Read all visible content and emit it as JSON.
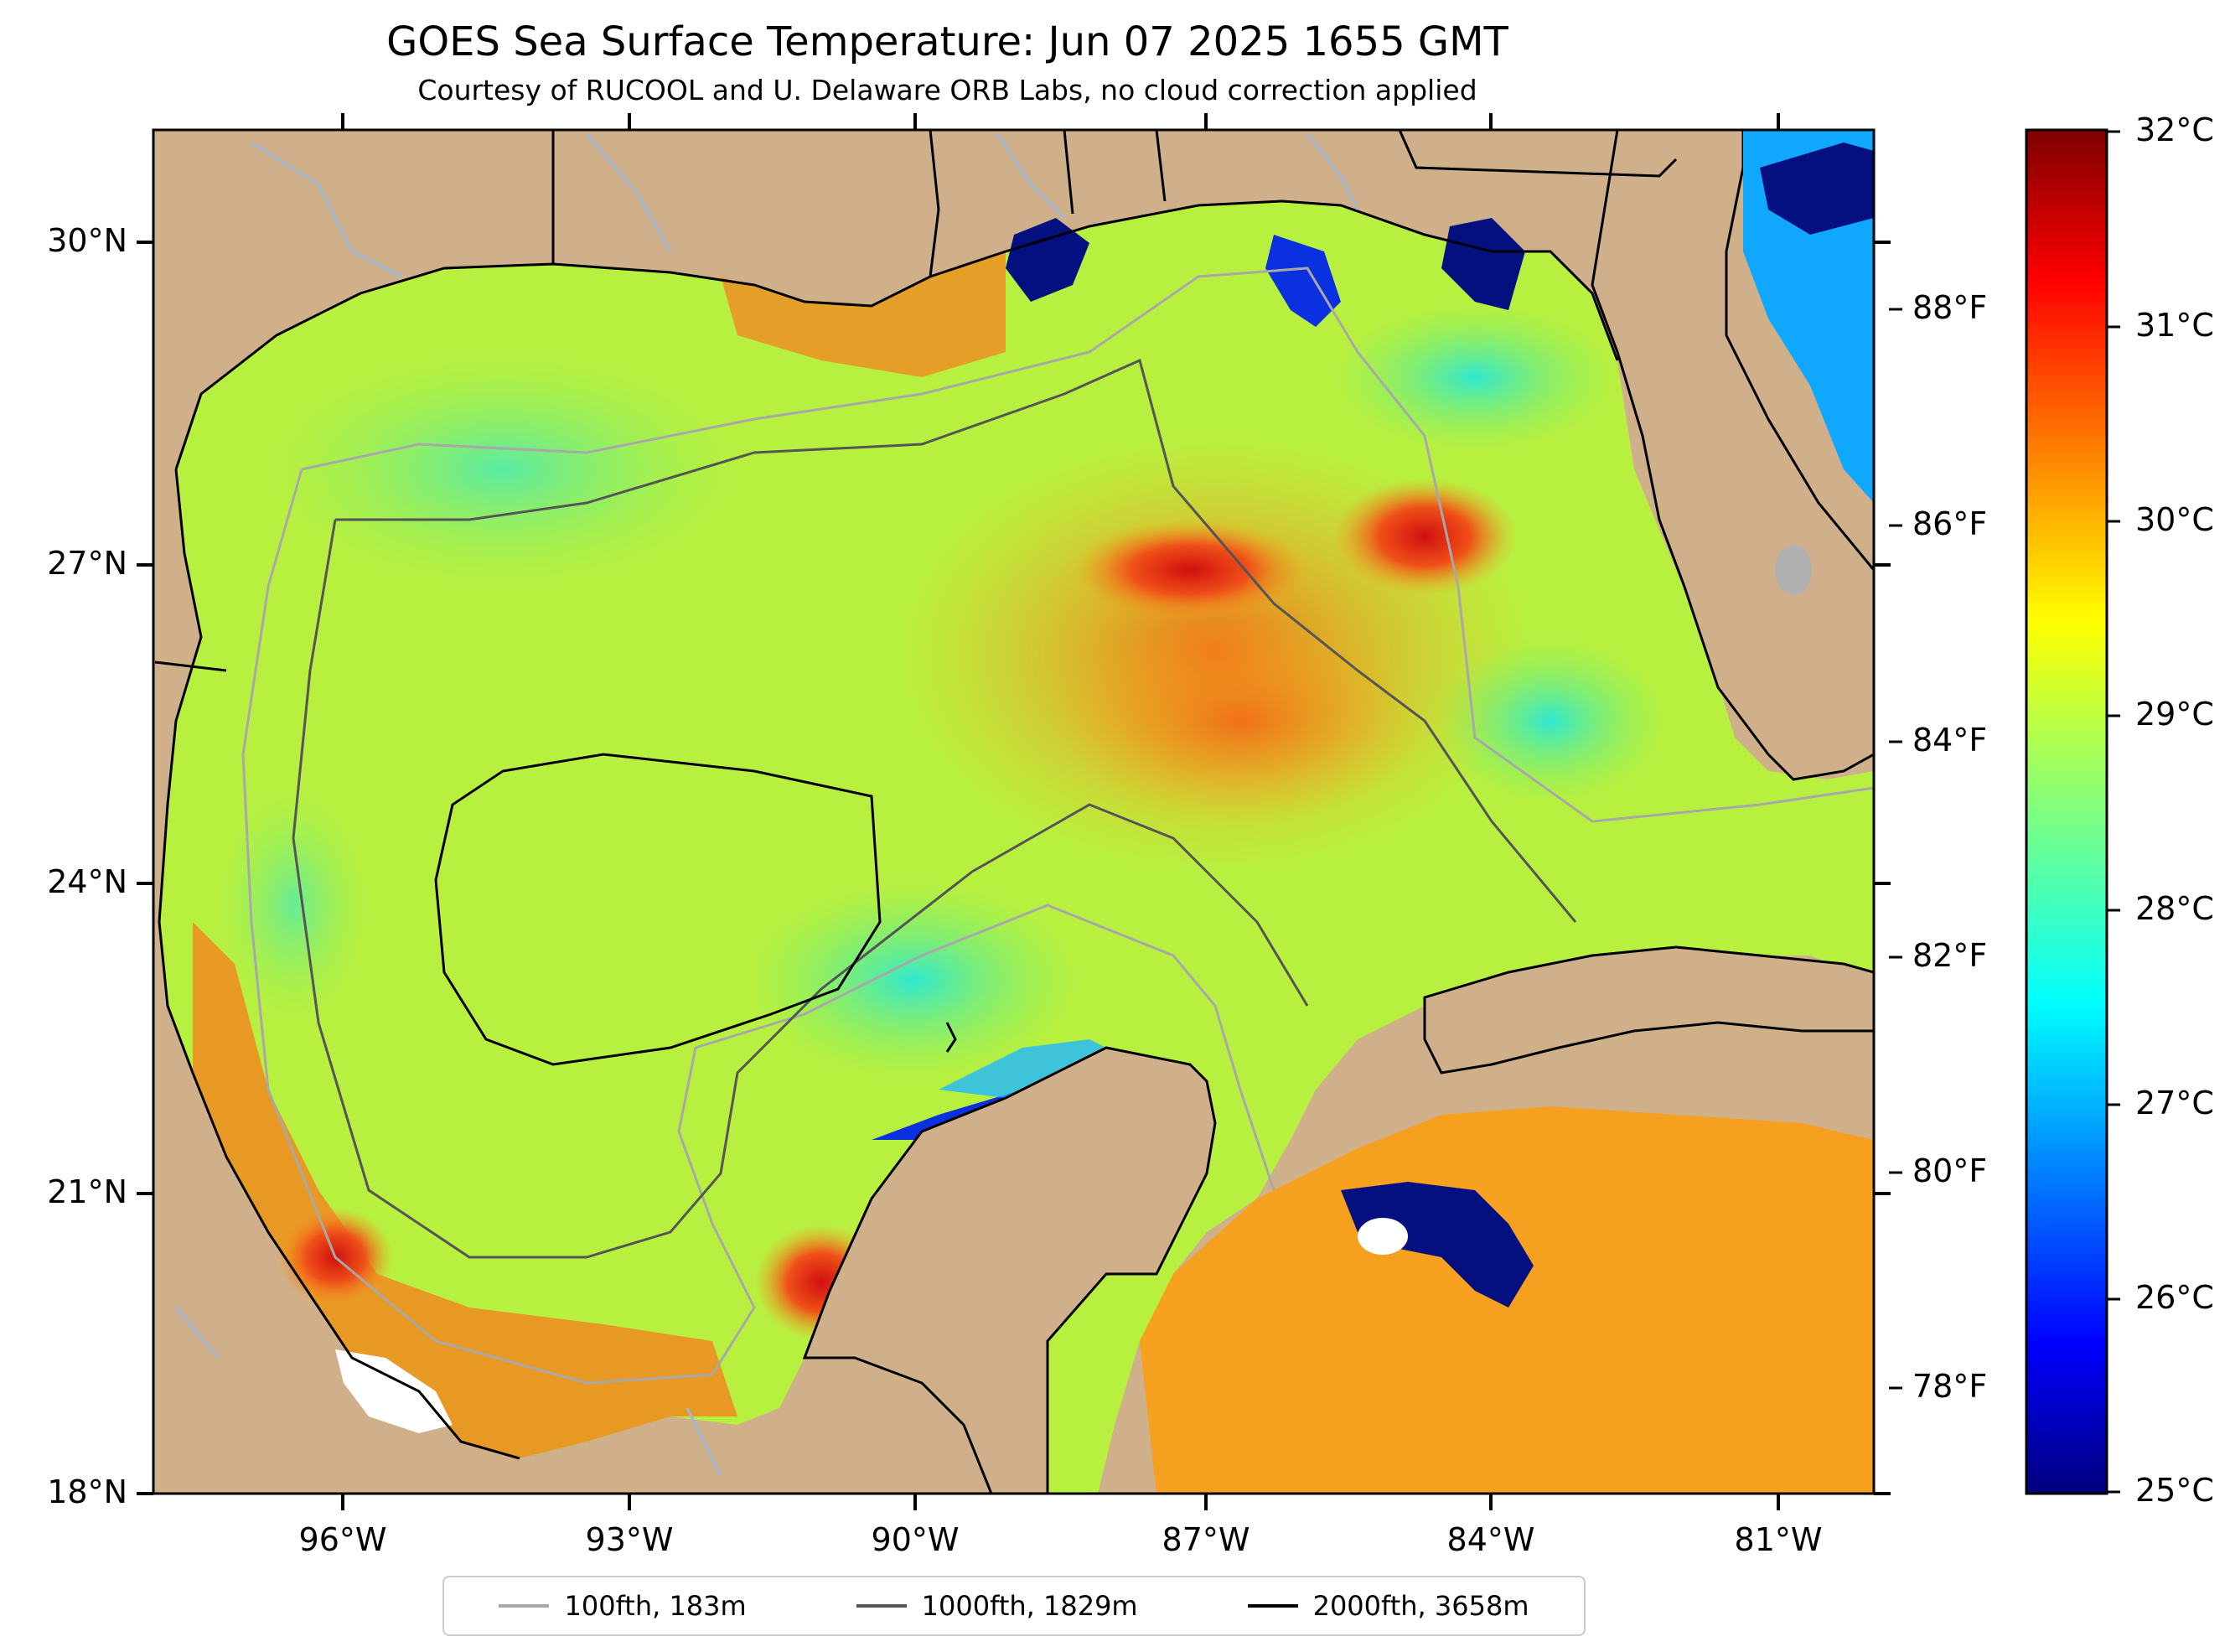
{
  "title": "GOES Sea Surface Temperature: Jun 07 2025 1655 GMT",
  "subtitle": "Courtesy of RUCOOL and U. Delaware ORB Labs, no cloud correction applied",
  "latitude_labels": [
    "30°N",
    "27°N",
    "24°N",
    "21°N",
    "18°N"
  ],
  "longitude_labels": [
    "96°W",
    "93°W",
    "90°W",
    "87°W",
    "84°W",
    "81°W"
  ],
  "colorbar": {
    "celsius_labels": [
      "32°C",
      "31°C",
      "30°C",
      "29°C",
      "28°C",
      "27°C",
      "26°C",
      "25°C"
    ],
    "fahrenheit_labels": [
      "88°F",
      "86°F",
      "84°F",
      "82°F",
      "80°F",
      "78°F"
    ],
    "colormap": "jet",
    "range_celsius": [
      25,
      32
    ]
  },
  "legend": [
    {
      "label": "100fth, 183m",
      "color": "#a8a8a8"
    },
    {
      "label": "1000fth, 1829m",
      "color": "#555555"
    },
    {
      "label": "2000fth, 3658m",
      "color": "#000000"
    }
  ],
  "colors": {
    "land": "#cfb08a",
    "no_data": "#ffffff",
    "rivers": "#9fb8d8"
  }
}
